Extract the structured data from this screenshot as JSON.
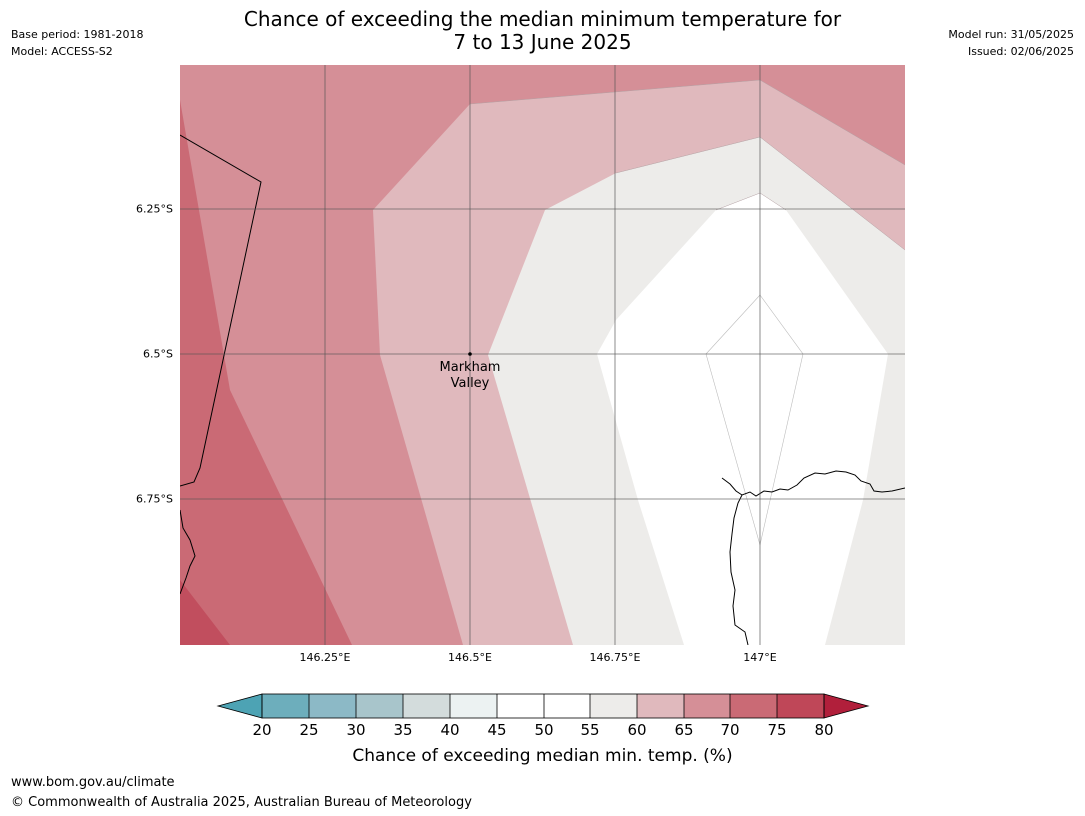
{
  "header": {
    "base_period": "Base period: 1981-2018",
    "model": "Model: ACCESS-S2",
    "model_run": "Model run: 31/05/2025",
    "issued": "Issued: 02/06/2025",
    "title_line1": "Chance of exceeding the median minimum temperature for",
    "title_line2": "7 to 13 June 2025"
  },
  "map": {
    "lat_labels": [
      "6.25°S",
      "6.5°S",
      "6.75°S"
    ],
    "lon_labels": [
      "146.25°E",
      "146.5°E",
      "146.75°E",
      "147°E"
    ],
    "place": {
      "line1": "Markham",
      "line2": "Valley"
    }
  },
  "colorbar": {
    "ticks": [
      "20",
      "25",
      "30",
      "35",
      "40",
      "45",
      "50",
      "55",
      "60",
      "65",
      "70",
      "75",
      "80"
    ],
    "label": "Chance of exceeding median min. temp. (%)",
    "colors": [
      "#4da3b4",
      "#6daebc",
      "#8cb9c6",
      "#a8c5cb",
      "#d3dcdc",
      "#ecf2f2",
      "#ffffff",
      "#ffffff",
      "#edecea",
      "#e0b9bd",
      "#d58f97",
      "#ca6a75",
      "#bf4758",
      "#b11f3b"
    ]
  },
  "footer": {
    "url": "www.bom.gov.au/climate",
    "copyright": "© Commonwealth of Australia 2025, Australian Bureau of Meteorology"
  }
}
